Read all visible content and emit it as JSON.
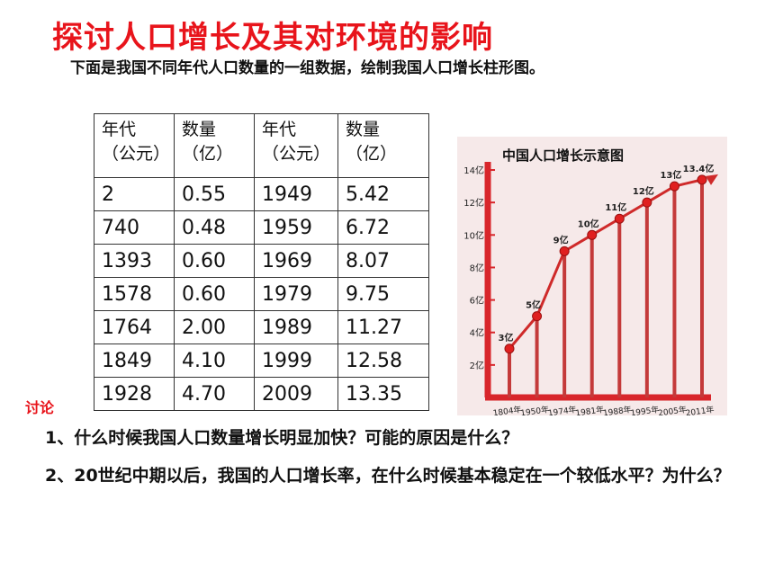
{
  "slide": {
    "title": "探讨人口增长及其对环境的影响",
    "subtitle": "下面是我国不同年代人口数量的一组数据，绘制我国人口增长柱形图。",
    "discuss_label": "讨论",
    "question_1": "1、什么时候我国人口数量增长明显加快？可能的原因是什么？",
    "question_2": "2、20世纪中期以后，我国的人口增长率，在什么时候基本稳定在一个较低水平？为什么？"
  },
  "table": {
    "headers": [
      {
        "line1": "年代",
        "line2": "（公元）"
      },
      {
        "line1": "数量",
        "line2": "（亿）"
      },
      {
        "line1": "年代",
        "line2": "（公元）"
      },
      {
        "line1": "数量",
        "line2": "（亿）"
      }
    ],
    "rows": [
      [
        "2",
        "0.55",
        "1949",
        "5.42"
      ],
      [
        "740",
        "0.48",
        "1959",
        "6.72"
      ],
      [
        "1393",
        "0.60",
        "1969",
        "8.07"
      ],
      [
        "1578",
        "0.60",
        "1979",
        "9.75"
      ],
      [
        "1764",
        "2.00",
        "1989",
        "11.27"
      ],
      [
        "1849",
        "4.10",
        "1999",
        "12.58"
      ],
      [
        "1928",
        "4.70",
        "2009",
        "13.35"
      ]
    ]
  },
  "chart_data": {
    "type": "line",
    "title": "中国人口增长示意图",
    "x": [
      "1804年",
      "1950年",
      "1974年",
      "1981年",
      "1988年",
      "1995年",
      "2005年",
      "2011年"
    ],
    "values": [
      3,
      5,
      9,
      10,
      11,
      12,
      13,
      13.4
    ],
    "data_labels": [
      "3亿",
      "5亿",
      "9亿",
      "10亿",
      "11亿",
      "12亿",
      "13亿",
      "13.4亿"
    ],
    "y_ticks": [
      2,
      4,
      6,
      8,
      10,
      12,
      14
    ],
    "y_tick_labels": [
      "2亿",
      "4亿",
      "6亿",
      "8亿",
      "10亿",
      "12亿",
      "14亿"
    ],
    "ylim": [
      0,
      14.5
    ],
    "colors": {
      "axis": "#d8262b",
      "line": "#cf2a2a",
      "point": "#e02020",
      "stem": "#c43a3a",
      "bg": "#f6e9e9"
    }
  }
}
